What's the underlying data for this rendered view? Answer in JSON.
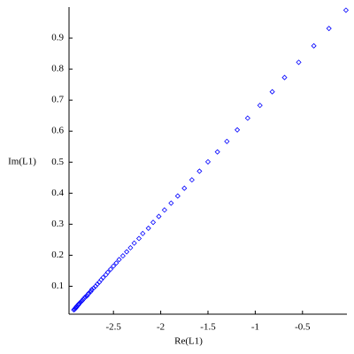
{
  "chart_data": {
    "type": "scatter",
    "x_label": "Re(L1)",
    "y_label": "Im(L1)",
    "color": "#0000ff",
    "xlim": [
      -2.97,
      -0.03
    ],
    "ylim": [
      0.01,
      1.0
    ],
    "xticks": [
      -2.5,
      -2.0,
      -1.5,
      -1.0,
      -0.5
    ],
    "yticks": [
      0.1,
      0.2,
      0.3,
      0.4,
      0.5,
      0.6,
      0.7,
      0.8,
      0.9
    ],
    "x": [
      -0.04,
      -0.22,
      -0.38,
      -0.54,
      -0.69,
      -0.82,
      -0.95,
      -1.08,
      -1.19,
      -1.3,
      -1.4,
      -1.5,
      -1.59,
      -1.67,
      -1.75,
      -1.82,
      -1.89,
      -1.96,
      -2.02,
      -2.08,
      -2.13,
      -2.19,
      -2.23,
      -2.28,
      -2.32,
      -2.36,
      -2.4,
      -2.44,
      -2.47,
      -2.5,
      -2.53,
      -2.56,
      -2.58,
      -2.61,
      -2.63,
      -2.65,
      -2.67,
      -2.69,
      -2.71,
      -2.73,
      -2.74,
      -2.76,
      -2.77,
      -2.78,
      -2.8,
      -2.81,
      -2.82,
      -2.83,
      -2.84,
      -2.85,
      -2.86,
      -2.87,
      -2.87,
      -2.88,
      -2.89,
      -2.89,
      -2.9,
      -2.9,
      -2.91,
      -2.91,
      -2.92
    ],
    "values": [
      0.99,
      0.931,
      0.875,
      0.822,
      0.773,
      0.727,
      0.683,
      0.642,
      0.604,
      0.567,
      0.533,
      0.501,
      0.471,
      0.443,
      0.416,
      0.391,
      0.368,
      0.346,
      0.325,
      0.306,
      0.287,
      0.27,
      0.254,
      0.239,
      0.224,
      0.211,
      0.198,
      0.186,
      0.175,
      0.165,
      0.155,
      0.145,
      0.137,
      0.128,
      0.121,
      0.113,
      0.107,
      0.1,
      0.094,
      0.089,
      0.083,
      0.078,
      0.074,
      0.069,
      0.065,
      0.061,
      0.058,
      0.054,
      0.051,
      0.048,
      0.045,
      0.042,
      0.04,
      0.037,
      0.035,
      0.033,
      0.031,
      0.029,
      0.027,
      0.026,
      0.024
    ]
  }
}
